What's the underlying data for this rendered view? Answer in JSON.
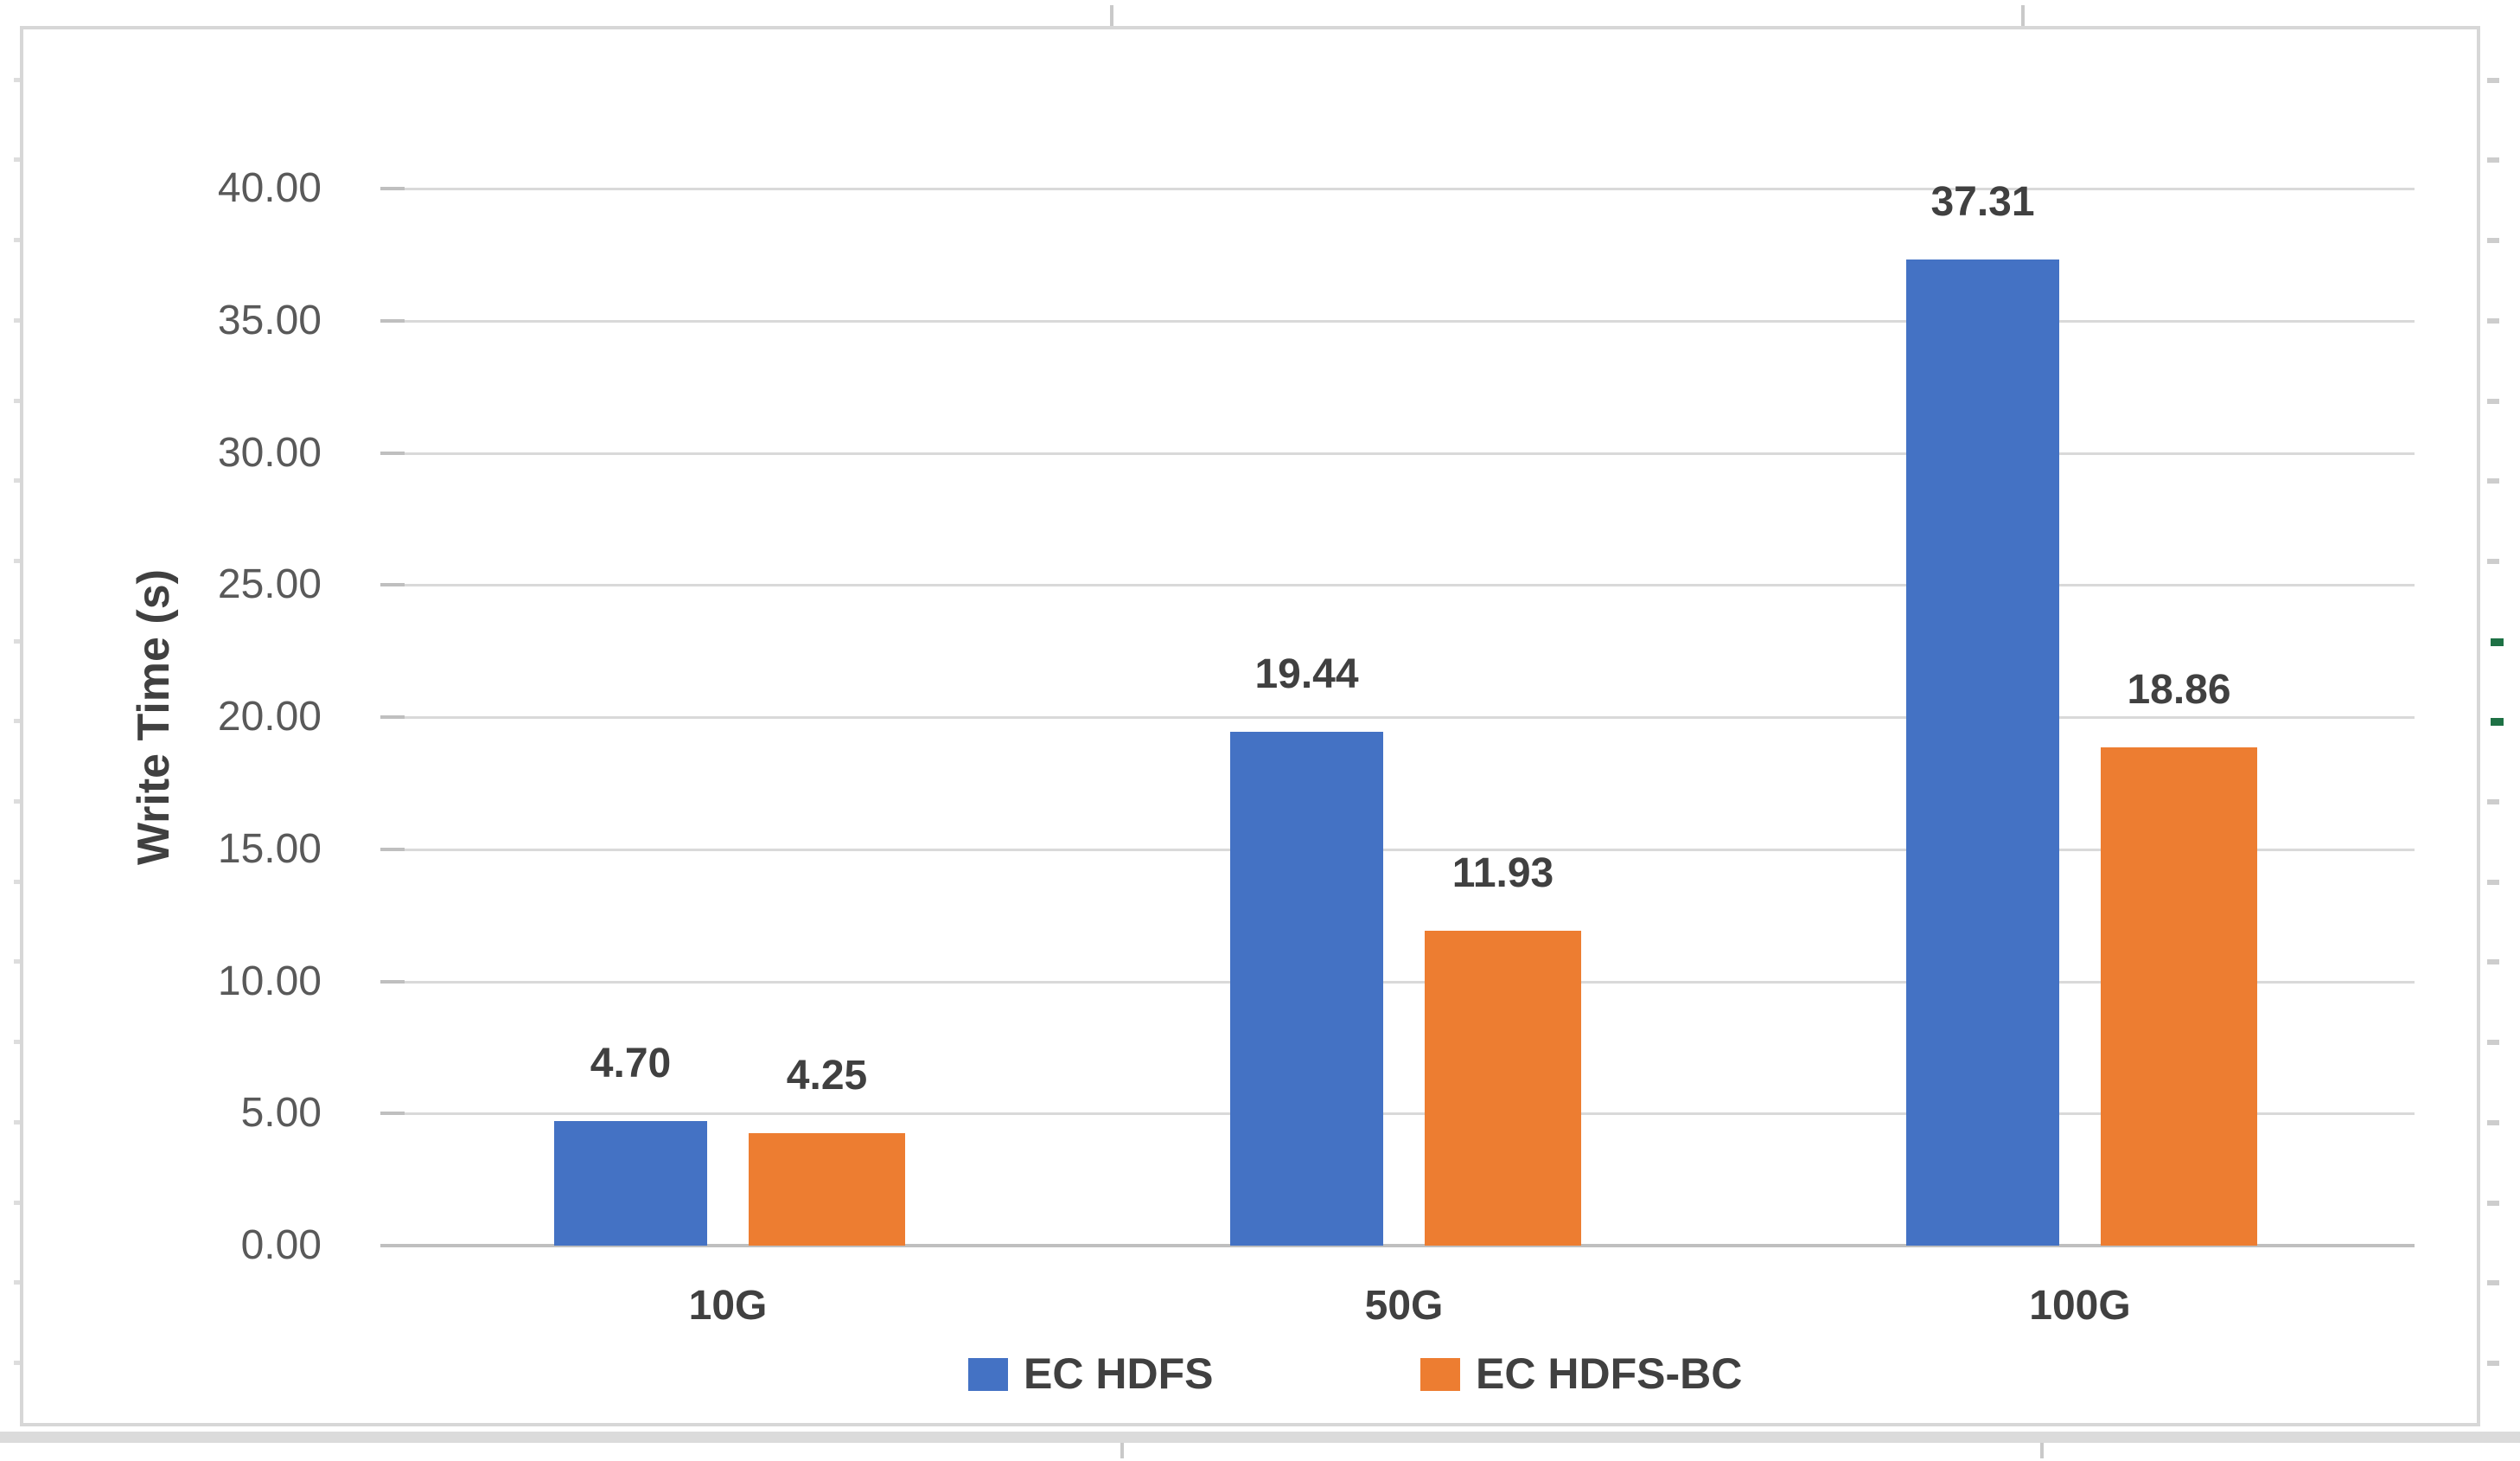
{
  "app": {
    "description": "Excel bar chart screenshot over spreadsheet"
  },
  "chart_data": {
    "type": "bar",
    "title": "",
    "categories": [
      "10G",
      "50G",
      "100G"
    ],
    "series": [
      {
        "name": "EC HDFS",
        "color": "#4472C4",
        "values": [
          4.7,
          19.44,
          37.31
        ],
        "data_labels": [
          "4.70",
          "19.44",
          "37.31"
        ]
      },
      {
        "name": "EC HDFS-BC",
        "color": "#ED7D31",
        "values": [
          4.25,
          11.93,
          18.86
        ],
        "data_labels": [
          "4.25",
          "11.93",
          "18.86"
        ]
      }
    ],
    "xlabel": "",
    "ylabel": "Write Time (s)",
    "ylim": [
      0,
      40
    ],
    "ytick_interval": 5,
    "ytick_labels": [
      "0.00",
      "5.00",
      "10.00",
      "15.00",
      "20.00",
      "25.00",
      "30.00",
      "35.00",
      "40.00"
    ],
    "grid": true,
    "gridlines": "horizontal",
    "legend_position": "bottom",
    "data_label_position": "outside-end"
  },
  "colors": {
    "series_blue": "#4472C4",
    "series_orange": "#ED7D31",
    "gridline": "#D9D9D9",
    "axis_line": "#BFBFBF",
    "tick_label_text": "#595959",
    "label_text": "#404040",
    "chart_border": "#D7D7D7",
    "sheet_band": "#DBDBDB",
    "sheet_stub": "#CDCDCD",
    "sheet_green_mark": "#1E7145"
  }
}
